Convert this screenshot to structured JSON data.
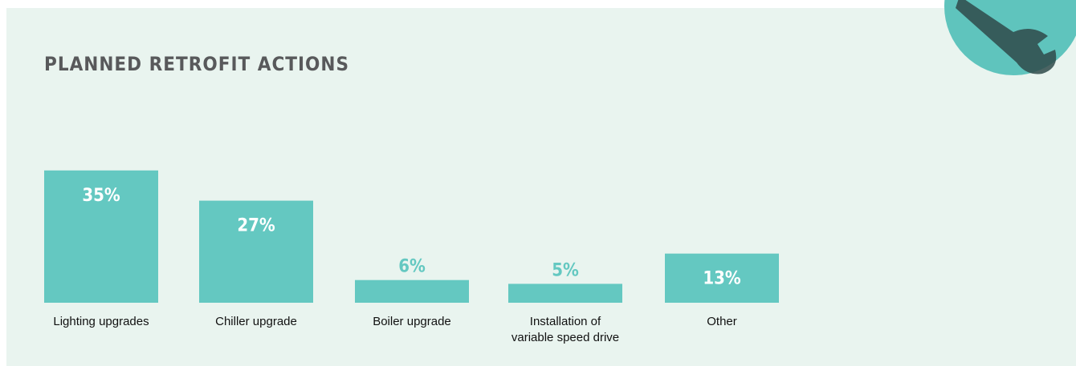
{
  "chart_data": {
    "type": "bar",
    "title": "PLANNED RETROFIT ACTIONS",
    "categories": [
      "Lighting upgrades",
      "Chiller upgrade",
      "Boiler upgrade",
      "Installation of variable speed drive",
      "Other"
    ],
    "values": [
      35,
      27,
      6,
      5,
      13
    ],
    "value_labels": [
      "35%",
      "27%",
      "6%",
      "5%",
      "13%"
    ],
    "color": "#64c8c1"
  }
}
